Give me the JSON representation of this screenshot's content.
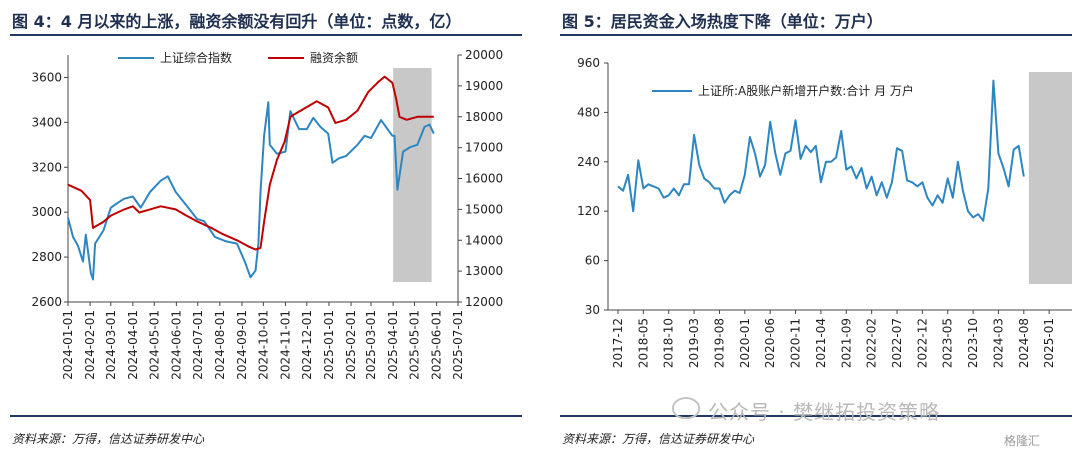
{
  "left": {
    "title": "图 4：4 月以来的上涨，融资余额没有回升（单位：点数，亿）",
    "source": "资料来源：万得，信达证券研发中心"
  },
  "right": {
    "title": "图 5：居民资金入场热度下降（单位：万户）",
    "source": "资料来源：万得，信达证券研发中心"
  },
  "watermark": "公众号 · 樊继拓投资策略",
  "brand": "格隆汇",
  "colors": {
    "blue": "#2e86c1",
    "red": "#c00000",
    "shade": "#c8c8c8",
    "rule": "#1f3864"
  },
  "chart_data": [
    {
      "type": "line",
      "title": "",
      "x_ticks": [
        "2024-01-01",
        "2024-02-01",
        "2024-03-01",
        "2024-04-01",
        "2024-05-01",
        "2024-06-01",
        "2024-07-01",
        "2024-08-01",
        "2024-09-01",
        "2024-10-01",
        "2024-11-01",
        "2024-12-01",
        "2025-01-01",
        "2025-02-01",
        "2025-03-01",
        "2025-04-01",
        "2025-05-01",
        "2025-06-01",
        "2025-07-01"
      ],
      "y_left": {
        "min": 2600,
        "max": 3700,
        "ticks": [
          2600,
          2800,
          3000,
          3200,
          3400,
          3600
        ]
      },
      "y_right": {
        "min": 12000,
        "max": 20000,
        "ticks": [
          12000,
          13000,
          14000,
          15000,
          16000,
          17000,
          18000,
          19000,
          20000
        ]
      },
      "legend_position": "top",
      "shaded_range": [
        "2025-04-01",
        "2025-05-25"
      ],
      "series": [
        {
          "name": "上证综合指数",
          "axis": "left",
          "color": "#2e86c1",
          "points": [
            [
              "2024-01-01",
              2975
            ],
            [
              "2024-01-08",
              2890
            ],
            [
              "2024-01-15",
              2850
            ],
            [
              "2024-01-22",
              2780
            ],
            [
              "2024-01-26",
              2900
            ],
            [
              "2024-02-02",
              2730
            ],
            [
              "2024-02-05",
              2700
            ],
            [
              "2024-02-08",
              2860
            ],
            [
              "2024-02-20",
              2920
            ],
            [
              "2024-03-01",
              3020
            ],
            [
              "2024-03-10",
              3040
            ],
            [
              "2024-03-20",
              3060
            ],
            [
              "2024-04-01",
              3070
            ],
            [
              "2024-04-12",
              3020
            ],
            [
              "2024-04-25",
              3090
            ],
            [
              "2024-05-10",
              3140
            ],
            [
              "2024-05-20",
              3160
            ],
            [
              "2024-05-31",
              3090
            ],
            [
              "2024-06-15",
              3030
            ],
            [
              "2024-06-30",
              2970
            ],
            [
              "2024-07-10",
              2960
            ],
            [
              "2024-07-25",
              2890
            ],
            [
              "2024-08-10",
              2870
            ],
            [
              "2024-08-25",
              2860
            ],
            [
              "2024-09-05",
              2780
            ],
            [
              "2024-09-13",
              2710
            ],
            [
              "2024-09-20",
              2740
            ],
            [
              "2024-09-24",
              2860
            ],
            [
              "2024-09-27",
              3090
            ],
            [
              "2024-10-02",
              3340
            ],
            [
              "2024-10-08",
              3490
            ],
            [
              "2024-10-10",
              3300
            ],
            [
              "2024-10-20",
              3260
            ],
            [
              "2024-11-01",
              3270
            ],
            [
              "2024-11-08",
              3450
            ],
            [
              "2024-11-20",
              3370
            ],
            [
              "2024-12-01",
              3370
            ],
            [
              "2024-12-10",
              3420
            ],
            [
              "2024-12-20",
              3380
            ],
            [
              "2024-12-31",
              3350
            ],
            [
              "2025-01-06",
              3220
            ],
            [
              "2025-01-15",
              3240
            ],
            [
              "2025-01-25",
              3250
            ],
            [
              "2025-02-10",
              3300
            ],
            [
              "2025-02-20",
              3340
            ],
            [
              "2025-03-01",
              3330
            ],
            [
              "2025-03-15",
              3410
            ],
            [
              "2025-03-31",
              3340
            ],
            [
              "2025-04-03",
              3340
            ],
            [
              "2025-04-07",
              3100
            ],
            [
              "2025-04-15",
              3270
            ],
            [
              "2025-04-25",
              3290
            ],
            [
              "2025-05-05",
              3300
            ],
            [
              "2025-05-15",
              3380
            ],
            [
              "2025-05-22",
              3390
            ],
            [
              "2025-05-28",
              3350
            ]
          ]
        },
        {
          "name": "融资余额",
          "axis": "right",
          "color": "#c00000",
          "points": [
            [
              "2024-01-01",
              15800
            ],
            [
              "2024-01-20",
              15600
            ],
            [
              "2024-02-01",
              15300
            ],
            [
              "2024-02-05",
              14400
            ],
            [
              "2024-02-20",
              14600
            ],
            [
              "2024-03-01",
              14800
            ],
            [
              "2024-03-20",
              15000
            ],
            [
              "2024-04-01",
              15100
            ],
            [
              "2024-04-10",
              14900
            ],
            [
              "2024-04-25",
              15000
            ],
            [
              "2024-05-10",
              15100
            ],
            [
              "2024-05-31",
              15000
            ],
            [
              "2024-06-15",
              14800
            ],
            [
              "2024-07-01",
              14600
            ],
            [
              "2024-07-20",
              14400
            ],
            [
              "2024-08-05",
              14200
            ],
            [
              "2024-08-25",
              14000
            ],
            [
              "2024-09-10",
              13800
            ],
            [
              "2024-09-20",
              13700
            ],
            [
              "2024-09-27",
              13750
            ],
            [
              "2024-10-02",
              14600
            ],
            [
              "2024-10-10",
              15800
            ],
            [
              "2024-10-20",
              16600
            ],
            [
              "2024-10-31",
              17200
            ],
            [
              "2024-11-08",
              18000
            ],
            [
              "2024-11-15",
              18100
            ],
            [
              "2024-11-30",
              18300
            ],
            [
              "2024-12-15",
              18500
            ],
            [
              "2024-12-31",
              18300
            ],
            [
              "2025-01-10",
              17800
            ],
            [
              "2025-01-25",
              17900
            ],
            [
              "2025-02-10",
              18200
            ],
            [
              "2025-02-25",
              18800
            ],
            [
              "2025-03-10",
              19100
            ],
            [
              "2025-03-20",
              19300
            ],
            [
              "2025-03-31",
              19100
            ],
            [
              "2025-04-05",
              18600
            ],
            [
              "2025-04-10",
              18000
            ],
            [
              "2025-04-20",
              17900
            ],
            [
              "2025-05-05",
              18000
            ],
            [
              "2025-05-20",
              18000
            ],
            [
              "2025-05-28",
              18000
            ]
          ]
        }
      ]
    },
    {
      "type": "line",
      "title": "",
      "y_scale": "log",
      "y_ticks": [
        30,
        60,
        120,
        240,
        480,
        960
      ],
      "x_ticks": [
        "2017-12",
        "2018-05",
        "2018-10",
        "2019-03",
        "2019-08",
        "2020-01",
        "2020-06",
        "2020-11",
        "2021-04",
        "2021-09",
        "2022-02",
        "2022-07",
        "2022-12",
        "2023-05",
        "2023-10",
        "2024-03",
        "2024-08",
        "2025-01"
      ],
      "legend_position": "top-left",
      "shaded_range": [
        "2024-09",
        "2025-05"
      ],
      "series": [
        {
          "name": "上证所:A股账户新增开户数:合计  月  万户",
          "color": "#2e86c1",
          "x_start": "2017-12",
          "values": [
            170,
            160,
            200,
            120,
            245,
            165,
            175,
            170,
            165,
            145,
            150,
            165,
            150,
            175,
            175,
            350,
            230,
            190,
            180,
            165,
            165,
            135,
            150,
            160,
            155,
            200,
            340,
            270,
            195,
            230,
            420,
            270,
            200,
            270,
            280,
            430,
            250,
            300,
            275,
            300,
            180,
            240,
            240,
            255,
            370,
            215,
            225,
            190,
            220,
            165,
            195,
            150,
            180,
            145,
            180,
            290,
            280,
            185,
            180,
            170,
            180,
            145,
            130,
            150,
            135,
            190,
            145,
            240,
            160,
            120,
            110,
            115,
            105,
            165,
            750,
            270,
            220,
            170,
            285,
            300,
            195
          ]
        }
      ]
    }
  ]
}
